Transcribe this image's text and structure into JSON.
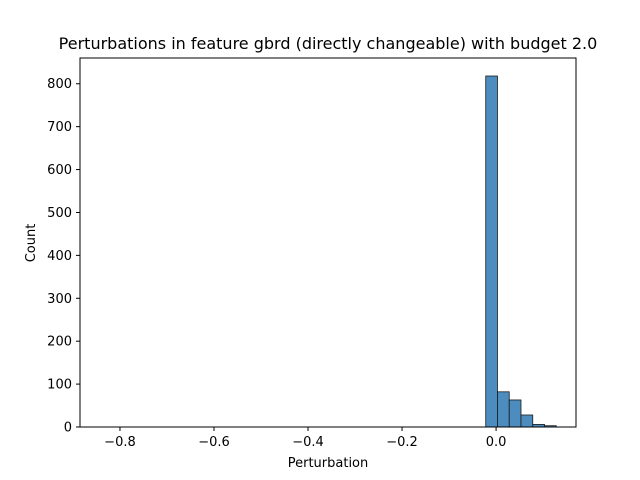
{
  "chart_data": {
    "type": "bar",
    "title": "Perturbations in feature gbrd (directly changeable) with budget 2.0",
    "xlabel": "Perturbation",
    "ylabel": "Count",
    "xlim": [
      -0.885,
      0.17
    ],
    "ylim": [
      0,
      860
    ],
    "x_ticks": [
      -0.8,
      -0.6,
      -0.4,
      -0.2,
      0.0
    ],
    "x_tick_labels": [
      "−0.8",
      "−0.6",
      "−0.4",
      "−0.2",
      "0.0"
    ],
    "y_ticks": [
      0,
      100,
      200,
      300,
      400,
      500,
      600,
      700,
      800
    ],
    "y_tick_labels": [
      "0",
      "100",
      "200",
      "300",
      "400",
      "500",
      "600",
      "700",
      "800"
    ],
    "bins": [
      {
        "start": -0.022,
        "end": 0.003,
        "count": 818
      },
      {
        "start": 0.003,
        "end": 0.028,
        "count": 82
      },
      {
        "start": 0.028,
        "end": 0.053,
        "count": 63
      },
      {
        "start": 0.053,
        "end": 0.078,
        "count": 28
      },
      {
        "start": 0.078,
        "end": 0.103,
        "count": 6
      },
      {
        "start": 0.103,
        "end": 0.128,
        "count": 3
      }
    ],
    "bar_color": "#4c8cbf",
    "edge_color": "#1a1a1a",
    "grid": false,
    "legend": "none"
  }
}
